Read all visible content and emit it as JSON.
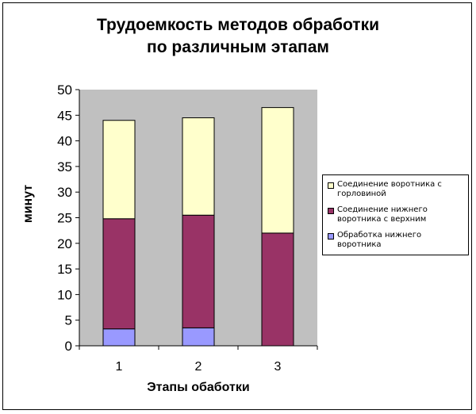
{
  "chart_data": {
    "type": "bar",
    "stacked": true,
    "title_lines": [
      "Трудоемкость методов обработки",
      "по различным этапам"
    ],
    "xlabel": "Этапы обаботки",
    "ylabel": "минут",
    "categories": [
      "1",
      "2",
      "3"
    ],
    "ylim": [
      0,
      50
    ],
    "yticks": [
      0,
      5,
      10,
      15,
      20,
      25,
      30,
      35,
      40,
      45,
      50
    ],
    "grid": false,
    "legend_position": "right",
    "series": [
      {
        "name": "Обработка нижнего воротника",
        "values": [
          3.3,
          3.5,
          0
        ],
        "color": "#9999ff"
      },
      {
        "name": "Соединение нижнего воротника с верхним",
        "values": [
          21.5,
          22,
          22
        ],
        "color": "#993366"
      },
      {
        "name": "Соединение воротника с горловиной",
        "values": [
          19.2,
          19,
          24.5
        ],
        "color": "#ffffcc"
      }
    ],
    "legend_order": [
      2,
      1,
      0
    ],
    "plot_background": "#c0c0c0"
  }
}
